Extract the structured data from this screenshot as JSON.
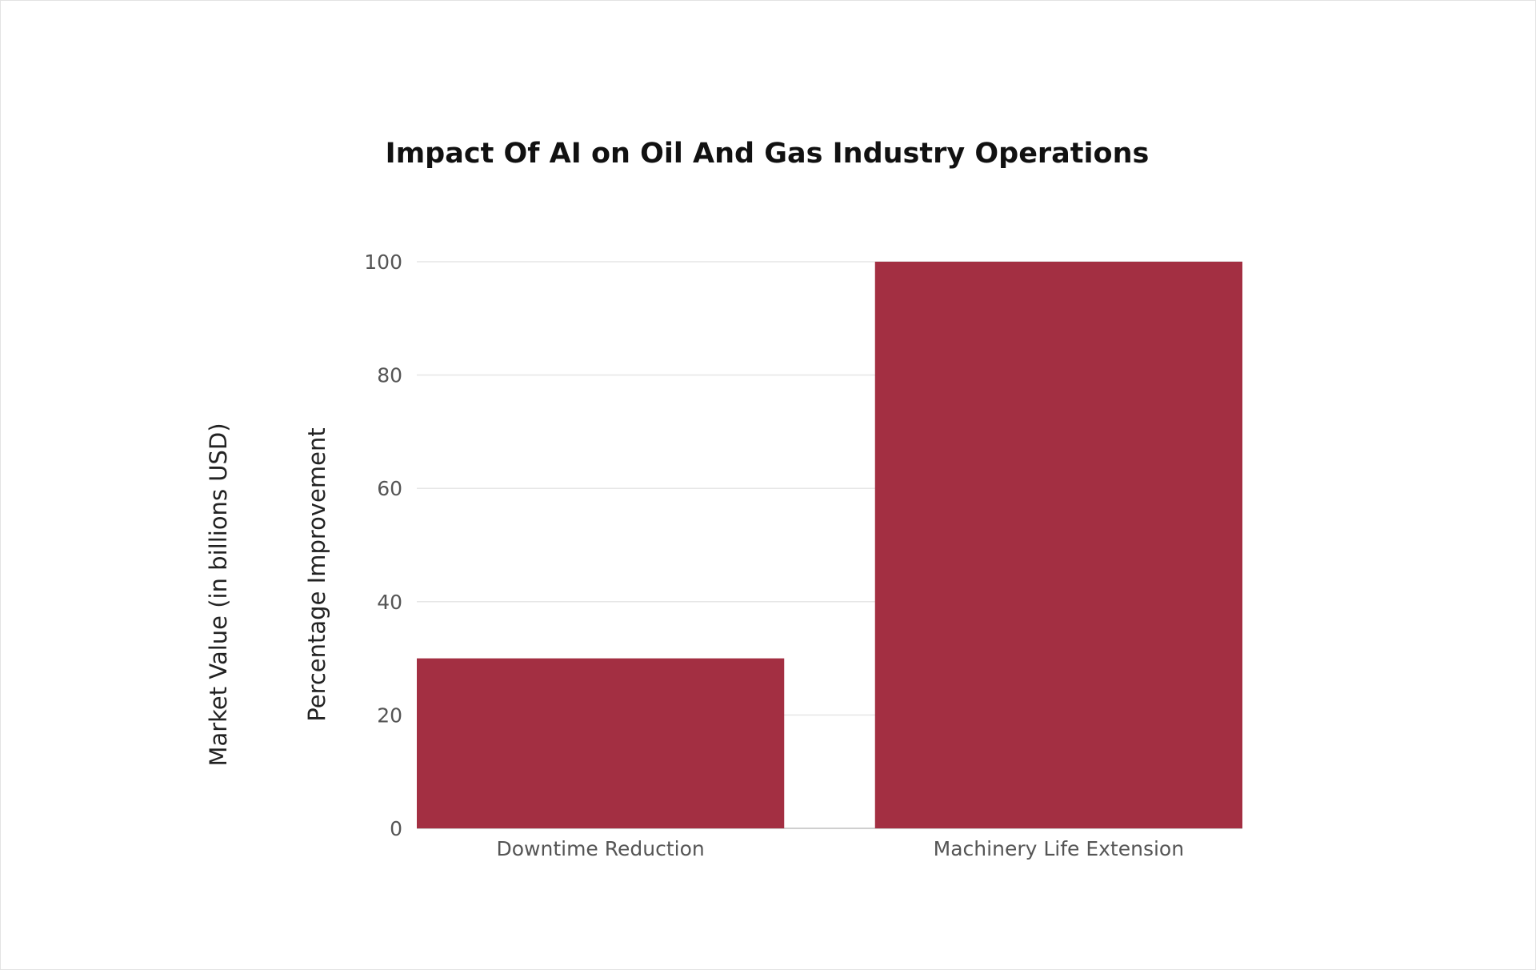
{
  "chart_data": {
    "type": "bar",
    "title": "Impact Of AI on Oil And Gas Industry Operations",
    "ylabel": "Percentage Improvement",
    "ylabel_secondary": "Market Value (in billions USD)",
    "xlabel": "",
    "categories": [
      "Downtime Reduction",
      "Machinery Life Extension"
    ],
    "values": [
      30,
      100
    ],
    "ylim": [
      0,
      100
    ],
    "yticks": [
      0,
      20,
      40,
      60,
      80,
      100
    ],
    "bar_color": "#a32f42",
    "grid": true,
    "legend": "none"
  }
}
